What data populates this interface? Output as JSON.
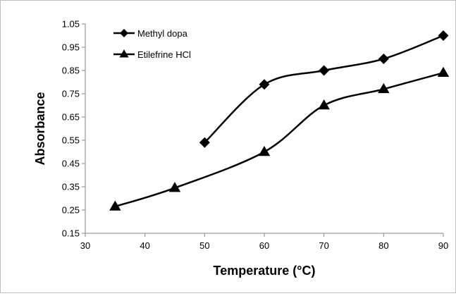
{
  "chart_data": {
    "type": "line",
    "title": "",
    "xlabel": "Temperature (°C)",
    "ylabel": "Absorbance",
    "xlim": [
      30,
      90
    ],
    "ylim": [
      0.15,
      1.05
    ],
    "x_ticks": [
      30,
      40,
      50,
      60,
      70,
      80,
      90
    ],
    "y_ticks": [
      0.15,
      0.25,
      0.35,
      0.45,
      0.55,
      0.65,
      0.75,
      0.85,
      0.95,
      1.05
    ],
    "y_tick_labels": [
      "0.15",
      "0.25",
      "0.35",
      "0.45",
      "0.55",
      "0.65",
      "0.75",
      "0.85",
      "0.95",
      "1.05"
    ],
    "grid": false,
    "legend_position": "top-left",
    "smooth": true,
    "series": [
      {
        "name": "Methyl dopa",
        "marker": "diamond",
        "color": "#000000",
        "x": [
          50,
          60,
          70,
          80,
          90
        ],
        "y": [
          0.54,
          0.79,
          0.85,
          0.9,
          1.0
        ]
      },
      {
        "name": "Etilefrine HCl",
        "marker": "triangle",
        "color": "#000000",
        "x": [
          35,
          45,
          60,
          70,
          80,
          90
        ],
        "y": [
          0.265,
          0.345,
          0.5,
          0.7,
          0.77,
          0.84
        ]
      }
    ]
  }
}
